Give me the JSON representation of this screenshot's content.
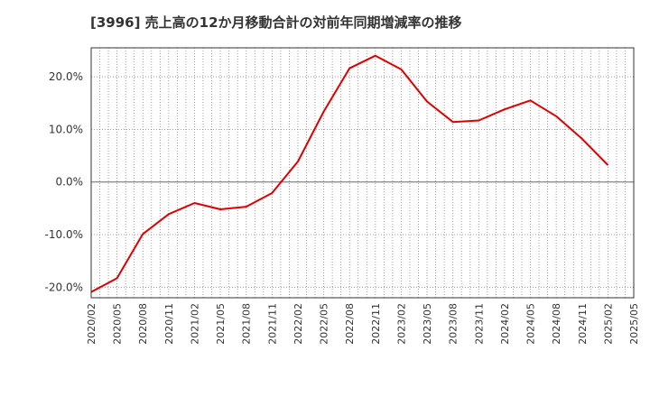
{
  "chart_data": {
    "type": "line",
    "title": "[3996]  売上高の12か月移動合計の対前年同期増減率の推移",
    "xlabel": "",
    "ylabel": "",
    "ylim": [
      -22,
      25.5
    ],
    "y_ticks": [
      -20,
      -10,
      0,
      10,
      20
    ],
    "y_tick_labels": [
      "-20.0%",
      "-10.0%",
      "0.0%",
      "10.0%",
      "20.0%"
    ],
    "grid": true,
    "categories": [
      "2020/02",
      "2020/05",
      "2020/08",
      "2020/11",
      "2021/02",
      "2021/05",
      "2021/08",
      "2021/11",
      "2022/02",
      "2022/05",
      "2022/08",
      "2022/11",
      "2023/02",
      "2023/05",
      "2023/08",
      "2023/11",
      "2024/02",
      "2024/05",
      "2024/08",
      "2024/11",
      "2025/02",
      "2025/05"
    ],
    "series": [
      {
        "name": "増減率",
        "color": "#dd0000",
        "values": [
          -20.9,
          -18.3,
          -9.9,
          -6.1,
          -4.0,
          -5.2,
          -4.7,
          -2.1,
          3.9,
          13.4,
          21.6,
          24.0,
          21.4,
          15.3,
          11.4,
          11.7,
          13.8,
          15.5,
          12.5,
          8.2,
          3.2,
          null
        ]
      }
    ]
  }
}
